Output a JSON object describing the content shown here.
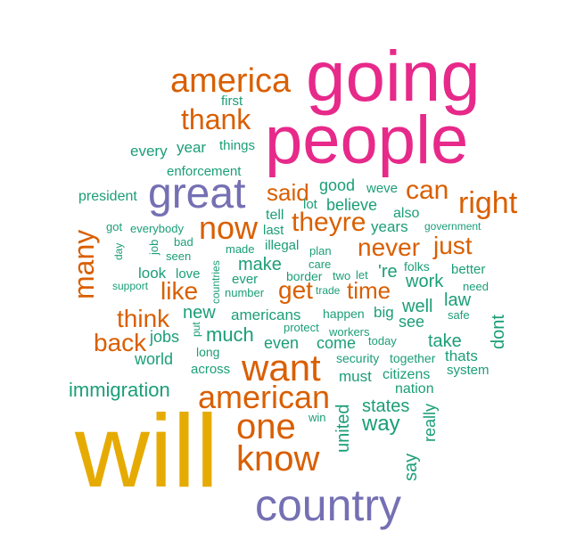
{
  "colors": {
    "pink": "#e7298a",
    "orange": "#d95f02",
    "purple": "#7570b3",
    "green": "#1b9e77",
    "gold": "#e6ab02"
  },
  "words": [
    "going",
    "people",
    "will",
    "america",
    "thank",
    "great",
    "country",
    "want",
    "american",
    "one",
    "know",
    "said",
    "can",
    "right",
    "now",
    "theyre",
    "never",
    "just",
    "many",
    "think",
    "back",
    "like",
    "get",
    "time",
    "immigration",
    "first",
    "year",
    "every",
    "things",
    "enforcement",
    "good",
    "weve",
    "president",
    "believe",
    "lot",
    "tell",
    "also",
    "years",
    "got",
    "everybody",
    "government",
    "day",
    "job",
    "bad",
    "seen",
    "last",
    "illegal",
    "made",
    "plan",
    "care",
    "border",
    "two",
    "let",
    "'re",
    "folks",
    "better",
    "look",
    "love",
    "make",
    "support",
    "countries",
    "ever",
    "number",
    "trade",
    "work",
    "need",
    "law",
    "new",
    "americans",
    "happen",
    "big",
    "well",
    "put",
    "protect",
    "workers",
    "see",
    "safe",
    "dont",
    "jobs",
    "much",
    "even",
    "come",
    "today",
    "take",
    "world",
    "long",
    "thats",
    "security",
    "together",
    "across",
    "system",
    "citizens",
    "must",
    "nation",
    "states",
    "win",
    "united",
    "way",
    "really",
    "say"
  ]
}
